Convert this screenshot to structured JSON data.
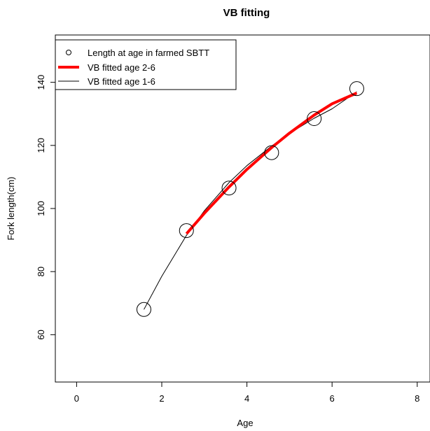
{
  "chart_data": {
    "type": "line",
    "title": "VB fitting",
    "xlabel": "Age",
    "ylabel": "Fork length(cm)",
    "xlim": [
      -0.5,
      8.3
    ],
    "ylim": [
      45,
      155
    ],
    "x_ticks": [
      0,
      2,
      4,
      6,
      8
    ],
    "y_ticks": [
      60,
      80,
      100,
      120,
      140
    ],
    "grid": false,
    "legend_position": "top-left",
    "series": [
      {
        "name": "Length at age in farmed SBTT",
        "kind": "points",
        "color": "#000000",
        "x": [
          1.58,
          2.58,
          3.58,
          4.58,
          5.58,
          6.58
        ],
        "y": [
          68,
          93,
          106.5,
          117.7,
          128.5,
          138
        ]
      },
      {
        "name": "VB fitted age 2-6",
        "kind": "line",
        "color": "#ff0000",
        "x": [
          2.58,
          3.0,
          3.58,
          4.0,
          4.58,
          5.0,
          5.58,
          6.0,
          6.58
        ],
        "y": [
          92,
          98.5,
          106.8,
          112.4,
          119.3,
          123.9,
          129.6,
          133.2,
          136.6
        ]
      },
      {
        "name": "VB fitted age 1-6",
        "kind": "line",
        "color": "#000000",
        "x": [
          1.58,
          2.0,
          2.58,
          3.0,
          3.58,
          4.0,
          4.58,
          5.0,
          5.58,
          6.0,
          6.58
        ],
        "y": [
          68,
          78.5,
          91.5,
          99.3,
          108.2,
          113.6,
          119.8,
          123.8,
          128.6,
          131.6,
          137
        ]
      }
    ]
  }
}
